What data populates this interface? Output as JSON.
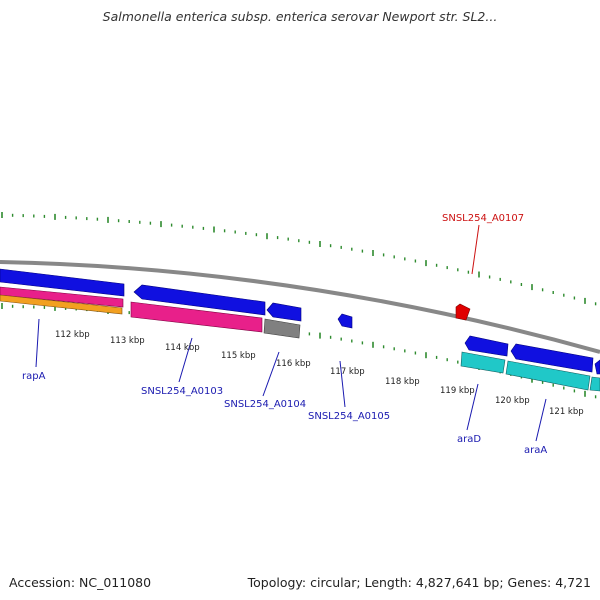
{
  "title": "Salmonella enterica subsp. enterica serovar Newport str. SL2...",
  "footer": {
    "accession": "Accession: NC_011080",
    "topology": "Topology: circular; Length: 4,827,641 bp; Genes: 4,721"
  },
  "colors": {
    "backbone": "#888888",
    "tick": "#2e8b2e",
    "gene_blue": "#1010e0",
    "gene_magenta": "#e8208a",
    "gene_orange": "#f2a020",
    "gene_gray": "#808080",
    "gene_cyan": "#20c8c8",
    "gene_teal": "#20a0a0",
    "gene_red": "#e00000",
    "label_blue": "#1a1ab0",
    "label_red": "#cc1111"
  },
  "kbp_labels": [
    "112 kbp",
    "113 kbp",
    "114 kbp",
    "115 kbp",
    "116 kbp",
    "117 kbp",
    "118 kbp",
    "119 kbp",
    "120 kbp",
    "121 kbp"
  ],
  "gene_labels": [
    {
      "name": "rapA",
      "color": "label_blue"
    },
    {
      "name": "SNSL254_A0103",
      "color": "label_blue"
    },
    {
      "name": "SNSL254_A0104",
      "color": "label_blue"
    },
    {
      "name": "SNSL254_A0105",
      "color": "label_blue"
    },
    {
      "name": "araD",
      "color": "label_blue"
    },
    {
      "name": "araA",
      "color": "label_blue"
    },
    {
      "name": "SNSL254_A0107",
      "color": "label_red"
    }
  ]
}
